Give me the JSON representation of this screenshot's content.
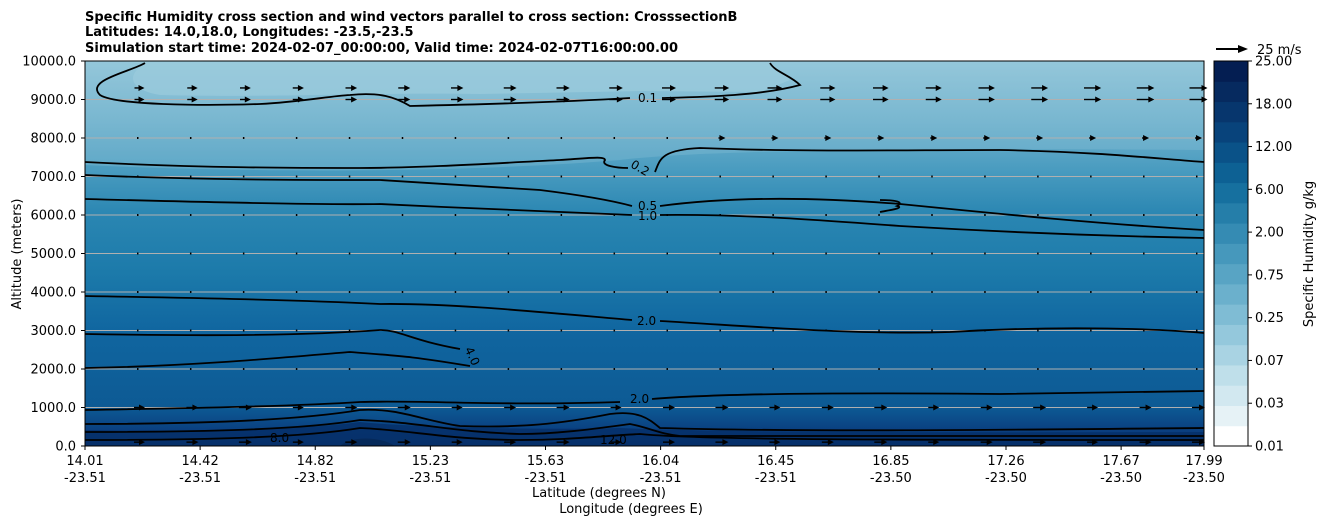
{
  "chart_data": {
    "type": "heatmap",
    "title_lines": [
      "Specific Humidity cross section and wind vectors parallel to cross section: CrosssectionB",
      "Latitudes: 14.0,18.0, Longitudes: -23.5,-23.5",
      "Simulation start time: 2024-02-07_00:00:00, Valid time: 2024-02-07T16:00:00.00"
    ],
    "ylabel": "Altitude (meters)",
    "xlabel": "Latitude (degrees N)",
    "xlabel2": "Longitude (degrees E)",
    "ylim": [
      0,
      10000
    ],
    "yticks": [
      "0.0",
      "1000.0",
      "2000.0",
      "3000.0",
      "4000.0",
      "5000.0",
      "6000.0",
      "7000.0",
      "8000.0",
      "9000.0",
      "10000.0"
    ],
    "x_ticks": [
      {
        "lat": "14.01",
        "lon": "-23.51"
      },
      {
        "lat": "14.42",
        "lon": "-23.51"
      },
      {
        "lat": "14.82",
        "lon": "-23.51"
      },
      {
        "lat": "15.23",
        "lon": "-23.51"
      },
      {
        "lat": "15.63",
        "lon": "-23.51"
      },
      {
        "lat": "16.04",
        "lon": "-23.51"
      },
      {
        "lat": "16.45",
        "lon": "-23.51"
      },
      {
        "lat": "16.85",
        "lon": "-23.50"
      },
      {
        "lat": "17.26",
        "lon": "-23.50"
      },
      {
        "lat": "17.67",
        "lon": "-23.50"
      },
      {
        "lat": "17.99",
        "lon": "-23.50"
      }
    ],
    "grid": "horizontal",
    "colorbar": {
      "label": "Specific Humidity g/kg",
      "ticks": [
        "0.01",
        "0.03",
        "0.07",
        "0.25",
        "0.75",
        "2.00",
        "6.00",
        "12.00",
        "18.00",
        "25.00"
      ]
    },
    "wind_key": "25 m/s",
    "contours": [
      {
        "level": "0.1",
        "altitude": 9000
      },
      {
        "level": "0.2",
        "altitude": 7100
      },
      {
        "level": "0.5",
        "altitude": 6200
      },
      {
        "level": "1.0",
        "altitude": 6000
      },
      {
        "level": "2.0",
        "altitude": 3000
      },
      {
        "level": "4.0",
        "altitude": 2400
      },
      {
        "level": "2.0",
        "altitude": 1000
      },
      {
        "level": "8.0",
        "altitude": 200
      },
      {
        "level": "12.0",
        "altitude": 150
      }
    ],
    "humidity_profile": [
      {
        "altitude": 0,
        "value": 18
      },
      {
        "altitude": 500,
        "value": 12
      },
      {
        "altitude": 1000,
        "value": 6
      },
      {
        "altitude": 2000,
        "value": 4
      },
      {
        "altitude": 3000,
        "value": 2
      },
      {
        "altitude": 4000,
        "value": 1.5
      },
      {
        "altitude": 5000,
        "value": 1.2
      },
      {
        "altitude": 6000,
        "value": 0.8
      },
      {
        "altitude": 7000,
        "value": 0.3
      },
      {
        "altitude": 8000,
        "value": 0.15
      },
      {
        "altitude": 9000,
        "value": 0.08
      },
      {
        "altitude": 10000,
        "value": 0.05
      }
    ]
  }
}
